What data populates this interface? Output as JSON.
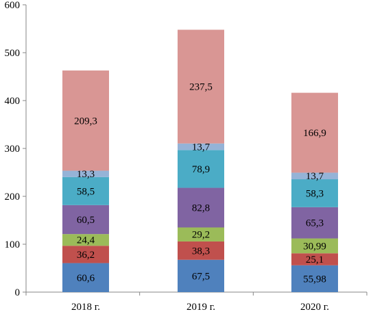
{
  "chart_data": {
    "type": "bar",
    "stacked": true,
    "categories": [
      "2018 г.",
      "2019 г.",
      "2020 г."
    ],
    "series": [
      {
        "values": [
          60.6,
          67.5,
          55.98
        ],
        "labels": [
          "60,6",
          "67,5",
          "55,98"
        ],
        "color": "#4f81bd"
      },
      {
        "values": [
          36.2,
          38.3,
          25.1
        ],
        "labels": [
          "36,2",
          "38,3",
          "25,1"
        ],
        "color": "#c0504d"
      },
      {
        "values": [
          24.4,
          29.2,
          30.99
        ],
        "labels": [
          "24,4",
          "29,2",
          "30,99"
        ],
        "color": "#9bbb59"
      },
      {
        "values": [
          60.5,
          82.8,
          65.3
        ],
        "labels": [
          "60,5",
          "82,8",
          "65,3"
        ],
        "color": "#8064a2"
      },
      {
        "values": [
          58.5,
          78.9,
          58.3
        ],
        "labels": [
          "58,5",
          "78,9",
          "58,3"
        ],
        "color": "#4bacc6"
      },
      {
        "values": [
          13.3,
          13.7,
          13.7
        ],
        "labels": [
          "13,3",
          "13,7",
          "13,7"
        ],
        "color": "#95b3d7"
      },
      {
        "values": [
          209.3,
          237.5,
          166.9
        ],
        "labels": [
          "209,3",
          "237,5",
          "166,9"
        ],
        "color": "#d99694"
      }
    ],
    "title": "",
    "xlabel": "",
    "ylabel": "",
    "ylim": [
      0,
      600
    ],
    "yticks": [
      "0",
      "100",
      "200",
      "300",
      "400",
      "500",
      "600"
    ],
    "grid": false,
    "legend": "none"
  }
}
